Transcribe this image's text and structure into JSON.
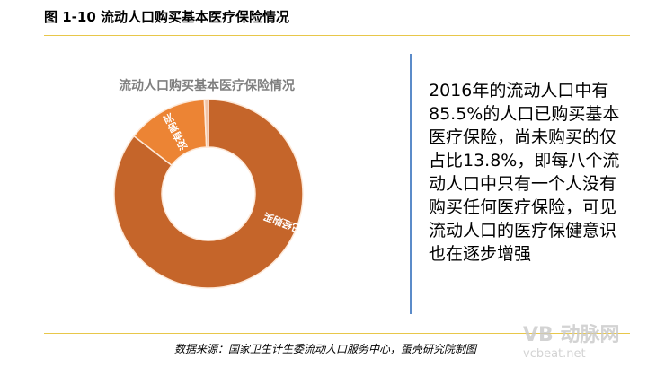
{
  "figure_title": "图 1-10 流动人口购买基本医疗保险情况",
  "description": "2016年的流动人口中有85.5%的人口已购买基本医疗保险，尚未购买的仅占比13.8%，即每八个流动人口中只有一个人没有购买任何医疗保险，可见流动人口的医疗保健意识也在逐步增强",
  "source": "数据来源：国家卫生计生委流动人口服务中心，蛋壳研究院制图",
  "watermark": {
    "logo": "动脉网",
    "site": "vcbeat.net"
  },
  "chart_data": {
    "type": "pie",
    "donut": true,
    "title": "流动人口购买基本医疗保险情况",
    "slices": [
      {
        "label": "已经购买",
        "value": 85.5,
        "color": "#c5652a"
      },
      {
        "label": "没有购买",
        "value": 13.8,
        "color": "#ec8434"
      },
      {
        "label": "",
        "value": 0.7,
        "color": "#f2c4a6"
      }
    ]
  }
}
